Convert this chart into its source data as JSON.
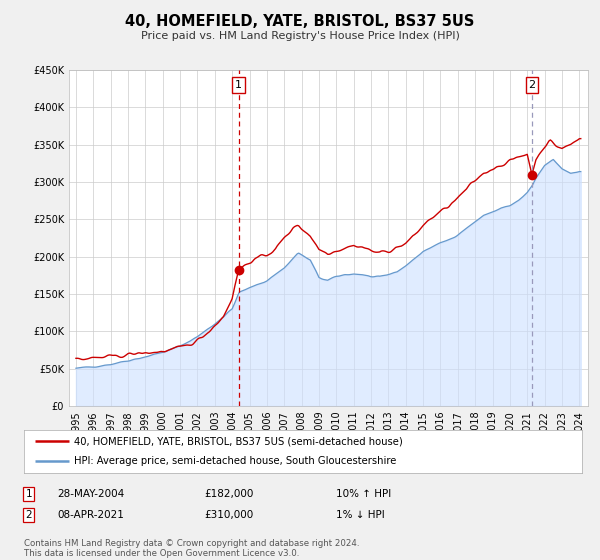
{
  "title": "40, HOMEFIELD, YATE, BRISTOL, BS37 5US",
  "subtitle": "Price paid vs. HM Land Registry's House Price Index (HPI)",
  "ylim": [
    0,
    450000
  ],
  "yticks": [
    0,
    50000,
    100000,
    150000,
    200000,
    250000,
    300000,
    350000,
    400000,
    450000
  ],
  "ytick_labels": [
    "£0",
    "£50K",
    "£100K",
    "£150K",
    "£200K",
    "£250K",
    "£300K",
    "£350K",
    "£400K",
    "£450K"
  ],
  "background_color": "#f0f0f0",
  "plot_bg_color": "#ffffff",
  "grid_color": "#cccccc",
  "line1_color": "#cc0000",
  "line2_color": "#6699cc",
  "fill2_color": "#cce0ff",
  "dashed_line1_color": "#cc0000",
  "dashed_line2_color": "#9999bb",
  "annotation1_year": 2004.37,
  "annotation1_value": 182000,
  "annotation2_year": 2021.27,
  "annotation2_value": 310000,
  "legend_line1": "40, HOMEFIELD, YATE, BRISTOL, BS37 5US (semi-detached house)",
  "legend_line2": "HPI: Average price, semi-detached house, South Gloucestershire",
  "table_row1": [
    "1",
    "28-MAY-2004",
    "£182,000",
    "10% ↑ HPI"
  ],
  "table_row2": [
    "2",
    "08-APR-2021",
    "£310,000",
    "1% ↓ HPI"
  ],
  "footnote": "Contains HM Land Registry data © Crown copyright and database right 2024.\nThis data is licensed under the Open Government Licence v3.0."
}
